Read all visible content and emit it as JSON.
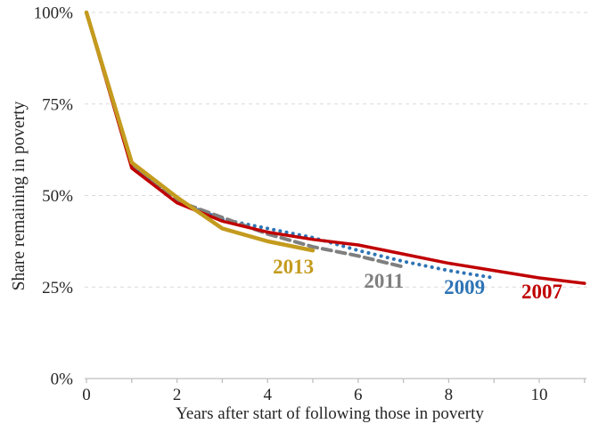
{
  "chart_data": {
    "type": "line",
    "title": "",
    "xlabel": "Years after start of following those in poverty",
    "ylabel": "Share remaining in poverty",
    "xlim": [
      0,
      11.05
    ],
    "ylim": [
      0,
      100
    ],
    "y_ticks": [
      {
        "value": 0,
        "label": "0%"
      },
      {
        "value": 25,
        "label": "25%"
      },
      {
        "value": 50,
        "label": "50%"
      },
      {
        "value": 75,
        "label": "75%"
      },
      {
        "value": 100,
        "label": "100%"
      }
    ],
    "x_major_ticks": [
      {
        "value": 0,
        "label": "0"
      },
      {
        "value": 2,
        "label": "2"
      },
      {
        "value": 4,
        "label": "4"
      },
      {
        "value": 6,
        "label": "6"
      },
      {
        "value": 8,
        "label": "8"
      },
      {
        "value": 10,
        "label": "10"
      }
    ],
    "x_minor_tick_step": 1,
    "x_minor_tick_max": 11,
    "grid": {
      "horizontal": true,
      "style": "dashed",
      "color": "#D9D9D9"
    },
    "axis_color": "#BFBFBF",
    "text_color": "#262626",
    "legend_position": "inline-labels",
    "draw_order": [
      "2009",
      "2011",
      "2007",
      "2013"
    ],
    "series": [
      {
        "name": "2007",
        "color": "#C00000",
        "line_style": "solid",
        "line_width": 3.5,
        "x": [
          0,
          1,
          2,
          3,
          4,
          5,
          6,
          7,
          8,
          9,
          10,
          11
        ],
        "values": [
          100,
          57.5,
          48,
          43,
          40,
          38,
          36.5,
          34,
          31.5,
          29.5,
          27.5,
          26
        ],
        "label": {
          "text": "2007",
          "x": 10.06,
          "y": 23.8
        }
      },
      {
        "name": "2009",
        "color": "#2E74B5",
        "line_style": "dotted",
        "line_width": 4,
        "x": [
          0,
          1,
          2,
          3,
          4,
          5,
          6,
          7,
          8,
          9
        ],
        "values": [
          100,
          58,
          48.5,
          43.5,
          41,
          38.5,
          35,
          32,
          29.5,
          27.5
        ],
        "label": {
          "text": "2009",
          "x": 8.35,
          "y": 25.1
        }
      },
      {
        "name": "2011",
        "color": "#7F7F7F",
        "line_style": "dashed",
        "line_width": 4,
        "x": [
          0,
          1,
          2,
          3,
          4,
          5,
          6,
          7
        ],
        "values": [
          100,
          58,
          48.5,
          44,
          39.5,
          36,
          33.5,
          30.5
        ],
        "label": {
          "text": "2011",
          "x": 6.57,
          "y": 26.8
        }
      },
      {
        "name": "2013",
        "color": "#C49B1E",
        "line_style": "solid",
        "line_width": 4.5,
        "x": [
          0,
          1,
          2,
          3,
          4,
          5
        ],
        "values": [
          100,
          59,
          49.5,
          41,
          37.5,
          35
        ],
        "label": {
          "text": "2013",
          "x": 4.57,
          "y": 30.7
        }
      }
    ]
  }
}
